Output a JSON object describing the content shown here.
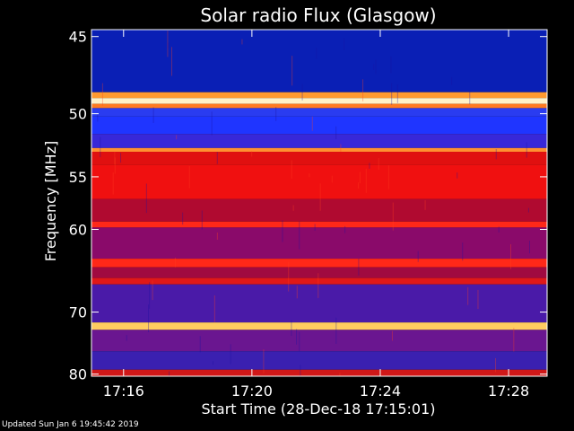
{
  "chart_data": {
    "type": "heatmap",
    "title": "Solar radio Flux (Glasgow)",
    "xlabel": "Start Time (28-Dec-18 17:15:01)",
    "ylabel": "Frequency [MHz]",
    "x_ticks": [
      "17:16",
      "17:20",
      "17:24",
      "17:28"
    ],
    "x_tick_minutes": [
      1,
      5,
      9,
      13
    ],
    "x_range_minutes": [
      0,
      14.2
    ],
    "y_ticks": [
      45,
      50,
      55,
      60,
      70,
      80
    ],
    "y_scale": "reciprocal",
    "y_range": [
      44.6,
      80.4
    ],
    "bands": [
      {
        "f0": 44.6,
        "f1": 48.5,
        "color": "#0a1fb5"
      },
      {
        "f0": 48.5,
        "f1": 48.9,
        "color": "#ff9a30"
      },
      {
        "f0": 48.9,
        "f1": 49.3,
        "color": "#fff2c8"
      },
      {
        "f0": 49.3,
        "f1": 49.6,
        "color": "#ff7a20"
      },
      {
        "f0": 49.6,
        "f1": 50.2,
        "color": "#2a3cf0"
      },
      {
        "f0": 50.2,
        "f1": 51.5,
        "color": "#1f35ff"
      },
      {
        "f0": 51.5,
        "f1": 52.6,
        "color": "#3828d8"
      },
      {
        "f0": 52.6,
        "f1": 52.9,
        "color": "#ff9030"
      },
      {
        "f0": 52.9,
        "f1": 54.0,
        "color": "#e01010"
      },
      {
        "f0": 54.0,
        "f1": 57.0,
        "color": "#f01010"
      },
      {
        "f0": 57.0,
        "f1": 59.2,
        "color": "#b00a30"
      },
      {
        "f0": 59.2,
        "f1": 59.8,
        "color": "#ff2818"
      },
      {
        "f0": 59.8,
        "f1": 63.2,
        "color": "#8a0a6a"
      },
      {
        "f0": 63.2,
        "f1": 64.2,
        "color": "#ff2818"
      },
      {
        "f0": 64.2,
        "f1": 65.5,
        "color": "#a00a40"
      },
      {
        "f0": 65.5,
        "f1": 66.3,
        "color": "#e01818"
      },
      {
        "f0": 66.3,
        "f1": 71.5,
        "color": "#4a1aa8"
      },
      {
        "f0": 71.5,
        "f1": 72.6,
        "color": "#ffcc60"
      },
      {
        "f0": 72.6,
        "f1": 76.0,
        "color": "#6a1690"
      },
      {
        "f0": 76.0,
        "f1": 79.2,
        "color": "#3a20b0"
      },
      {
        "f0": 79.2,
        "f1": 80.4,
        "color": "#d01818"
      }
    ]
  },
  "footer": {
    "updated": "Updated Sun Jan  6 19:45:42 2019"
  }
}
